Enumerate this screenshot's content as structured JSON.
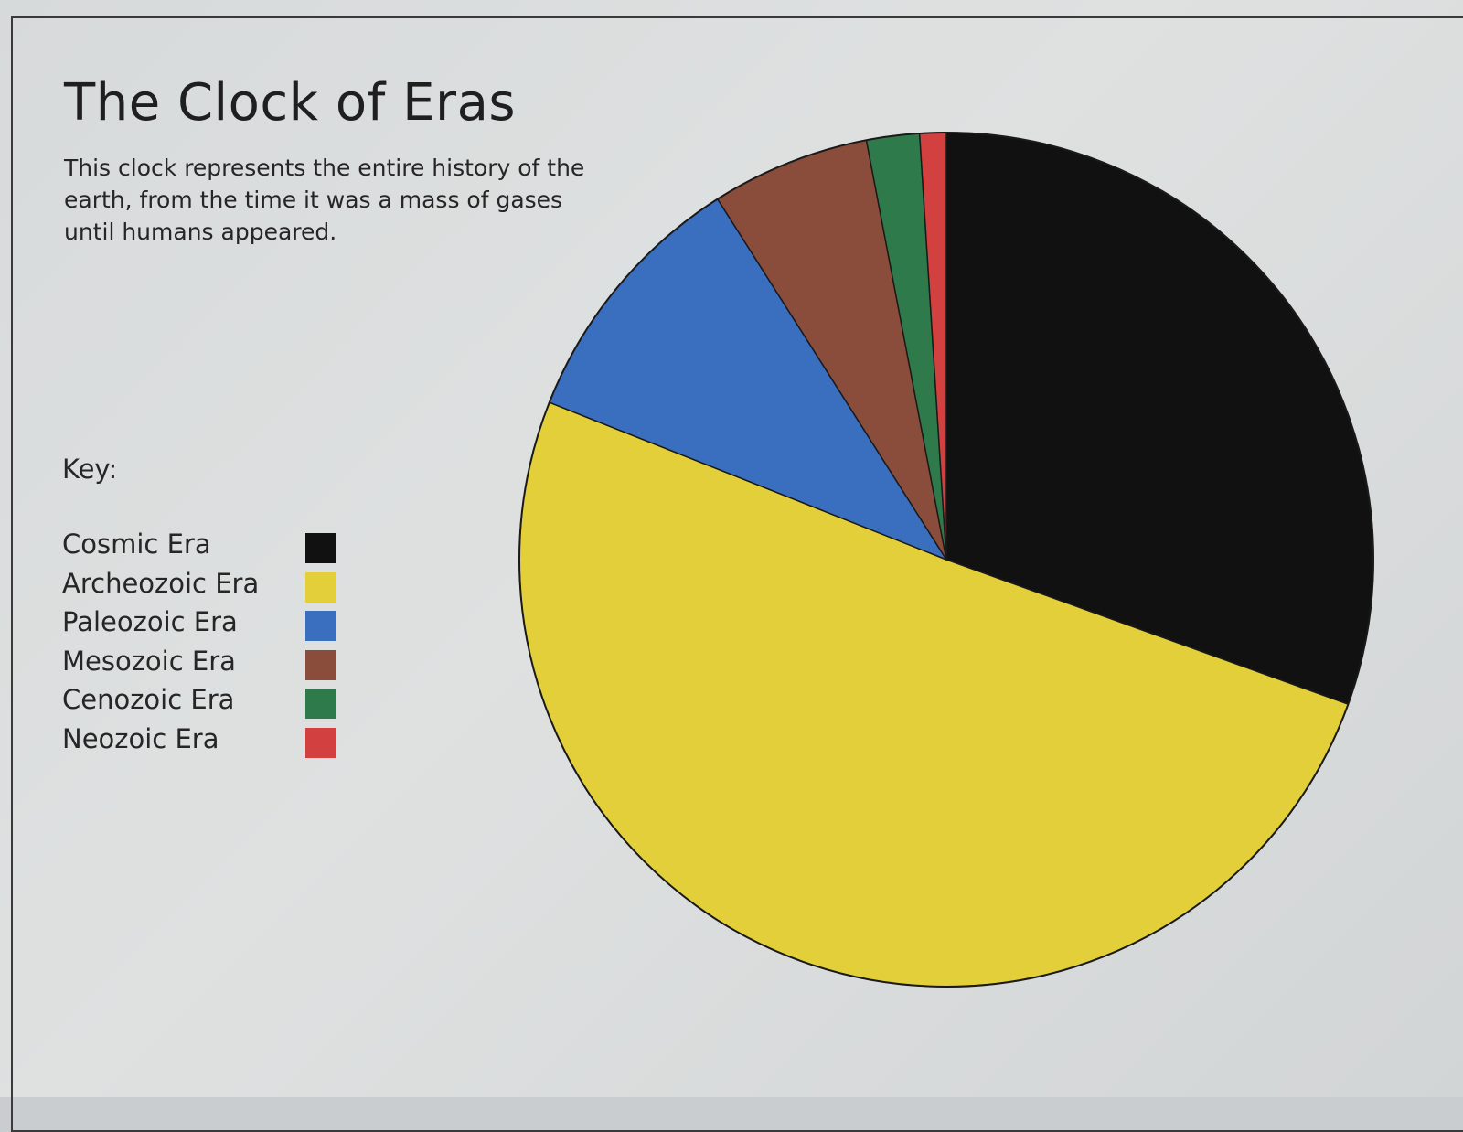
{
  "chart_data": {
    "type": "pie",
    "title": "The Clock of Eras",
    "subtitle": "This clock represents the entire history of the earth, from the time it was a mass of gases until humans appeared.",
    "legend_title": "Key:",
    "legend_position": "left",
    "start_angle_deg": 0,
    "direction": "clockwise",
    "slices": [
      {
        "label": "Cosmic Era",
        "value": 30.5,
        "color": "#111111"
      },
      {
        "label": "Archeozoic Era",
        "value": 50.5,
        "color": "#e3cf3a"
      },
      {
        "label": "Paleozoic Era",
        "value": 10.0,
        "color": "#3a6fc0"
      },
      {
        "label": "Mesozoic Era",
        "value": 6.0,
        "color": "#8a4d3c"
      },
      {
        "label": "Cenozoic Era",
        "value": 2.0,
        "color": "#2f7a4a"
      },
      {
        "label": "Neozoic Era",
        "value": 1.0,
        "color": "#d34040"
      }
    ]
  }
}
